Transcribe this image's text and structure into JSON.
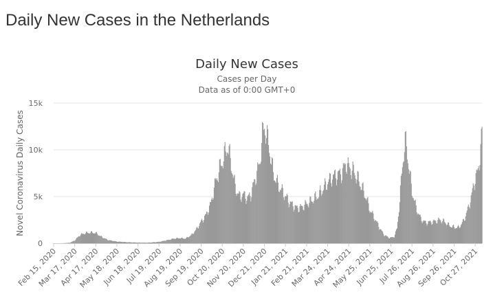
{
  "page": {
    "heading": "Daily New Cases in the Netherlands"
  },
  "colors": {
    "bars": "#999999",
    "grid": "#e6e6e6",
    "axis": "#cccccc",
    "text": "#333333",
    "muted": "#666666"
  },
  "chart_data": {
    "type": "bar",
    "title": "Daily New Cases",
    "subtitle": [
      "Cases per Day",
      "Data as of 0:00 GMT+0"
    ],
    "xlabel": "",
    "ylabel": "Novel Coronavirus Daily Cases",
    "ylim": [
      0,
      15000
    ],
    "yticks": [
      0,
      5000,
      10000,
      15000
    ],
    "ytick_labels": [
      "0",
      "5k",
      "10k",
      "15k"
    ],
    "x_start": "Feb 15, 2020",
    "x_end": "Nov 06, 2021",
    "xtick_labels": [
      "Feb 15, 2020",
      "Mar 17, 2020",
      "Apr 17, 2020",
      "May 18, 2020",
      "Jun 18, 2020",
      "Jul 19, 2020",
      "Aug 19, 2020",
      "Sep 19, 2020",
      "Oct 20, 2020",
      "Nov 20, 2020",
      "Dec 21, 2020",
      "Jan 21, 2021",
      "Feb 21, 2021",
      "Mar 24, 2021",
      "Apr 24, 2021",
      "May 25, 2021",
      "Jun 25, 2021",
      "Jul 26, 2021",
      "Aug 26, 2021",
      "Sep 26, 2021",
      "Oct 27, 2021"
    ],
    "grid": true,
    "legend": "none",
    "series": [
      {
        "name": "",
        "points": [
          [
            "Feb 15, 2020",
            0
          ],
          [
            "Feb 29, 2020",
            5
          ],
          [
            "Mar 10, 2020",
            60
          ],
          [
            "Mar 17, 2020",
            300
          ],
          [
            "Mar 25, 2020",
            900
          ],
          [
            "Apr 02, 2020",
            1100
          ],
          [
            "Apr 10, 2020",
            1150
          ],
          [
            "Apr 17, 2020",
            1100
          ],
          [
            "Apr 25, 2020",
            700
          ],
          [
            "May 05, 2020",
            350
          ],
          [
            "May 18, 2020",
            180
          ],
          [
            "Jun 01, 2020",
            120
          ],
          [
            "Jun 18, 2020",
            80
          ],
          [
            "Jul 01, 2020",
            60
          ],
          [
            "Jul 19, 2020",
            150
          ],
          [
            "Aug 01, 2020",
            350
          ],
          [
            "Aug 10, 2020",
            500
          ],
          [
            "Aug 19, 2020",
            550
          ],
          [
            "Aug 27, 2020",
            500
          ],
          [
            "Sep 05, 2020",
            900
          ],
          [
            "Sep 12, 2020",
            1500
          ],
          [
            "Sep 19, 2020",
            2300
          ],
          [
            "Sep 26, 2020",
            3000
          ],
          [
            "Oct 03, 2020",
            4200
          ],
          [
            "Oct 10, 2020",
            6500
          ],
          [
            "Oct 17, 2020",
            8200
          ],
          [
            "Oct 20, 2020",
            8700
          ],
          [
            "Oct 25, 2020",
            9800
          ],
          [
            "Oct 28, 2020",
            10400
          ],
          [
            "Nov 02, 2020",
            8500
          ],
          [
            "Nov 08, 2020",
            6000
          ],
          [
            "Nov 14, 2020",
            5000
          ],
          [
            "Nov 20, 2020",
            5200
          ],
          [
            "Nov 26, 2020",
            4800
          ],
          [
            "Dec 01, 2020",
            5200
          ],
          [
            "Dec 07, 2020",
            6800
          ],
          [
            "Dec 14, 2020",
            8500
          ],
          [
            "Dec 18, 2020",
            11500
          ],
          [
            "Dec 21, 2020",
            12500
          ],
          [
            "Dec 23, 2020",
            12000
          ],
          [
            "Dec 28, 2020",
            10200
          ],
          [
            "Jan 03, 2021",
            7500
          ],
          [
            "Jan 10, 2021",
            6200
          ],
          [
            "Jan 17, 2021",
            5500
          ],
          [
            "Jan 21, 2021",
            5000
          ],
          [
            "Jan 28, 2021",
            4300
          ],
          [
            "Feb 05, 2021",
            3800
          ],
          [
            "Feb 12, 2021",
            3800
          ],
          [
            "Feb 21, 2021",
            4200
          ],
          [
            "Mar 01, 2021",
            4600
          ],
          [
            "Mar 10, 2021",
            5100
          ],
          [
            "Mar 17, 2021",
            5800
          ],
          [
            "Mar 24, 2021",
            6500
          ],
          [
            "Mar 31, 2021",
            7100
          ],
          [
            "Apr 07, 2021",
            7300
          ],
          [
            "Apr 14, 2021",
            7500
          ],
          [
            "Apr 20, 2021",
            8600
          ],
          [
            "Apr 24, 2021",
            8100
          ],
          [
            "May 01, 2021",
            7700
          ],
          [
            "May 08, 2021",
            6800
          ],
          [
            "May 15, 2021",
            5700
          ],
          [
            "May 20, 2021",
            4800
          ],
          [
            "May 25, 2021",
            3600
          ],
          [
            "Jun 01, 2021",
            2700
          ],
          [
            "Jun 08, 2021",
            1700
          ],
          [
            "Jun 15, 2021",
            900
          ],
          [
            "Jun 22, 2021",
            600
          ],
          [
            "Jun 25, 2021",
            600
          ],
          [
            "Jun 30, 2021",
            700
          ],
          [
            "Jul 04, 2021",
            1600
          ],
          [
            "Jul 08, 2021",
            4500
          ],
          [
            "Jul 12, 2021",
            8500
          ],
          [
            "Jul 16, 2021",
            10800
          ],
          [
            "Jul 18, 2021",
            10300
          ],
          [
            "Jul 22, 2021",
            7800
          ],
          [
            "Jul 26, 2021",
            5600
          ],
          [
            "Aug 01, 2021",
            3800
          ],
          [
            "Aug 08, 2021",
            2600
          ],
          [
            "Aug 15, 2021",
            2200
          ],
          [
            "Aug 26, 2021",
            2300
          ],
          [
            "Sep 05, 2021",
            2500
          ],
          [
            "Sep 12, 2021",
            2300
          ],
          [
            "Sep 19, 2021",
            1900
          ],
          [
            "Sep 26, 2021",
            1700
          ],
          [
            "Oct 03, 2021",
            1700
          ],
          [
            "Oct 10, 2021",
            2400
          ],
          [
            "Oct 17, 2021",
            3800
          ],
          [
            "Oct 22, 2021",
            5200
          ],
          [
            "Oct 27, 2021",
            7000
          ],
          [
            "Oct 31, 2021",
            7600
          ],
          [
            "Nov 03, 2021",
            9500
          ],
          [
            "Nov 06, 2021",
            11800
          ]
        ]
      }
    ]
  }
}
